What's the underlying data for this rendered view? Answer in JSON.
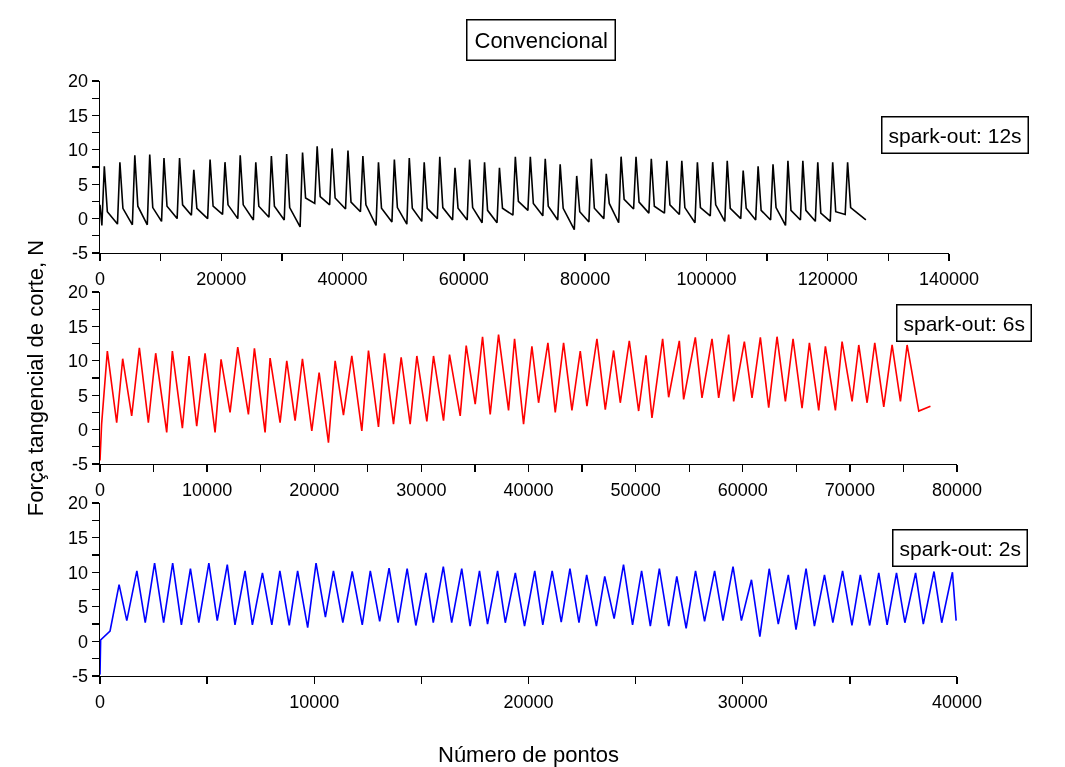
{
  "chart_data": [
    {
      "type": "line",
      "title": "Convencional",
      "annotations": [
        "spark-out: 12s"
      ],
      "line_style": "solid",
      "xlim": [
        0,
        140000
      ],
      "xticks": [
        0,
        {
          "value": 10000,
          "label": null
        },
        20000,
        {
          "value": 30000,
          "label": null
        },
        40000,
        {
          "value": 50000,
          "label": null
        },
        60000,
        {
          "value": 70000,
          "label": null
        },
        80000,
        {
          "value": 90000,
          "label": null
        },
        100000,
        {
          "value": 110000,
          "label": null
        },
        120000,
        {
          "value": 130000,
          "label": null
        },
        140000
      ],
      "ylim": [
        -5,
        20
      ],
      "yticks": [
        -5,
        {
          "value": -2.5,
          "label": null
        },
        0,
        {
          "value": 2.5,
          "label": null
        },
        5,
        {
          "value": 7.5,
          "label": null
        },
        10,
        {
          "value": 12.5,
          "label": null
        },
        15,
        {
          "value": 17.5,
          "label": null
        },
        20
      ],
      "x": [
        0,
        310,
        710,
        1210,
        2880,
        3280,
        3780,
        5340,
        5740,
        6240,
        7800,
        8200,
        8700,
        10150,
        10550,
        11050,
        12720,
        13120,
        13620,
        15070,
        15470,
        15970,
        17750,
        18150,
        18650,
        20210,
        20610,
        21110,
        22720,
        23120,
        23620,
        25290,
        25690,
        26190,
        27860,
        28260,
        28760,
        30380,
        30780,
        31280,
        33000,
        33400,
        33900,
        35410,
        35810,
        36310,
        37870,
        38270,
        38770,
        40490,
        40890,
        41390,
        42950,
        43350,
        43850,
        45520,
        45920,
        46420,
        48140,
        48540,
        49040,
        50600,
        51000,
        51500,
        53060,
        53460,
        53960,
        55630,
        56030,
        56530,
        58140,
        58540,
        59040,
        60550,
        60950,
        61450,
        63010,
        63410,
        63910,
        65470,
        65870,
        66370,
        68090,
        68490,
        68990,
        70560,
        70960,
        71460,
        73020,
        73420,
        73920,
        75480,
        75880,
        76380,
        78210,
        78610,
        79110,
        80620,
        81020,
        81520,
        83080,
        83480,
        83980,
        85530,
        85930,
        86430,
        87990,
        88390,
        88890,
        90510,
        90910,
        91410,
        93080,
        93480,
        93980,
        95540,
        95940,
        96440,
        98110,
        98510,
        99010,
        100630,
        101030,
        101530,
        103030,
        103430,
        103930,
        105660,
        106060,
        106560,
        108120,
        108520,
        109020,
        110580,
        110980,
        111480,
        113040,
        113440,
        113940,
        115500,
        115900,
        116400,
        117960,
        118360,
        118860,
        120420,
        120820,
        121320,
        122880,
        123280,
        123780,
        126290
      ],
      "series": [
        {
          "color": "#000000",
          "values": [
            2.0,
            -1.0,
            7.6,
            1.0,
            -0.8,
            8.2,
            1.5,
            -0.9,
            9.2,
            1.8,
            -0.9,
            9.3,
            1.6,
            -0.4,
            8.8,
            1.8,
            0.0,
            8.8,
            2.0,
            0.5,
            7.1,
            1.5,
            0.0,
            8.6,
            1.8,
            0.6,
            8.2,
            2.0,
            0.0,
            9.2,
            2.0,
            -0.2,
            8.2,
            1.8,
            0.2,
            9.1,
            1.8,
            -0.2,
            9.4,
            1.6,
            -1.2,
            9.6,
            3.0,
            2.2,
            10.5,
            3.2,
            2.0,
            10.2,
            3.0,
            1.4,
            9.9,
            2.4,
            1.0,
            9.1,
            2.0,
            -1.0,
            8.2,
            1.5,
            -0.5,
            8.6,
            1.6,
            -0.8,
            8.8,
            1.5,
            -0.4,
            8.2,
            1.5,
            0.0,
            9.0,
            1.6,
            -0.2,
            7.4,
            1.5,
            -0.2,
            8.6,
            1.6,
            -0.6,
            8.2,
            1.2,
            -0.6,
            7.4,
            1.5,
            0.5,
            9.0,
            2.5,
            1.2,
            9.0,
            2.2,
            0.4,
            8.7,
            1.8,
            -0.2,
            7.9,
            1.5,
            -1.6,
            6.2,
            1.0,
            -0.5,
            8.7,
            1.5,
            0.0,
            6.5,
            2.2,
            -0.6,
            9.0,
            2.8,
            1.4,
            9.0,
            2.4,
            0.8,
            8.7,
            1.8,
            0.8,
            8.4,
            2.0,
            0.6,
            8.4,
            1.6,
            -0.6,
            8.2,
            1.6,
            0.4,
            8.2,
            2.0,
            -0.4,
            8.4,
            1.5,
            0.0,
            7.0,
            1.5,
            -0.2,
            7.6,
            1.2,
            -0.2,
            7.9,
            1.6,
            -1.0,
            8.4,
            1.2,
            -0.2,
            8.4,
            1.2,
            -0.4,
            8.2,
            0.8,
            -0.4,
            8.2,
            1.0,
            0.6,
            8.2,
            1.6,
            -0.2
          ]
        }
      ]
    },
    {
      "type": "line",
      "ylabel": "Força tangencial de corte, N",
      "annotations": [
        "spark-out: 6s"
      ],
      "line_style": "solid",
      "xlim": [
        0,
        80000
      ],
      "xticks": [
        0,
        {
          "value": 5000,
          "label": null
        },
        10000,
        {
          "value": 15000,
          "label": null
        },
        20000,
        {
          "value": 25000,
          "label": null
        },
        30000,
        {
          "value": 35000,
          "label": null
        },
        40000,
        {
          "value": 45000,
          "label": null
        },
        50000,
        {
          "value": 55000,
          "label": null
        },
        60000,
        {
          "value": 65000,
          "label": null
        },
        70000,
        {
          "value": 75000,
          "label": null
        },
        80000
      ],
      "ylim": [
        -5,
        20
      ],
      "yticks": [
        -5,
        {
          "value": -2.5,
          "label": null
        },
        0,
        {
          "value": 2.5,
          "label": null
        },
        5,
        {
          "value": 7.5,
          "label": null
        },
        10,
        {
          "value": 12.5,
          "label": null
        },
        15,
        {
          "value": 17.5,
          "label": null
        },
        20
      ],
      "x": [
        0,
        150,
        685,
        1557,
        2117,
        2958,
        3674,
        4514,
        5199,
        6227,
        6756,
        7690,
        8313,
        9029,
        9807,
        10741,
        11301,
        12142,
        12858,
        13854,
        14415,
        15411,
        15878,
        16812,
        17435,
        18213,
        18898,
        19770,
        20455,
        21326,
        21949,
        22727,
        23506,
        24440,
        25062,
        25996,
        26557,
        27397,
        28113,
        28954,
        29577,
        30511,
        31133,
        32067,
        32628,
        33624,
        34184,
        35025,
        35710,
        36426,
        37204,
        38138,
        38699,
        39539,
        40318,
        40940,
        41812,
        42497,
        43275,
        44054,
        44832,
        45455,
        46389,
        47167,
        47945,
        48568,
        49409,
        50281,
        50965,
        51526,
        52522,
        53082,
        54079,
        54483,
        55573,
        56196,
        57130,
        57752,
        58686,
        59153,
        60150,
        60866,
        61644,
        62422,
        63201,
        63979,
        64695,
        65536,
        66221,
        67092,
        67715,
        68649,
        69272,
        70206,
        70829,
        71607,
        72323,
        73163,
        73942,
        74720,
        75343,
        76432,
        77522
      ],
      "series": [
        {
          "color": "#ff0000",
          "values": [
            -4.5,
            0.8,
            11.4,
            1.0,
            10.3,
            2.0,
            11.9,
            1.0,
            11.1,
            -0.4,
            11.4,
            0.2,
            10.7,
            0.5,
            11.1,
            -0.4,
            10.2,
            2.5,
            12.0,
            2.2,
            11.8,
            -0.4,
            10.4,
            1.0,
            10.0,
            1.3,
            10.3,
            -0.2,
            8.3,
            -1.9,
            10.0,
            2.1,
            10.7,
            -0.2,
            11.5,
            0.4,
            11.1,
            0.8,
            10.5,
            0.8,
            10.7,
            1.2,
            10.7,
            1.3,
            10.9,
            2.0,
            12.2,
            3.7,
            13.5,
            2.2,
            13.8,
            2.8,
            13.2,
            0.8,
            12.1,
            3.9,
            12.6,
            2.5,
            12.6,
            2.8,
            11.4,
            3.4,
            13.2,
            2.9,
            11.5,
            3.9,
            12.9,
            2.7,
            10.8,
            1.7,
            13.2,
            4.7,
            12.9,
            4.4,
            13.4,
            4.6,
            13.2,
            4.6,
            13.8,
            4.1,
            12.8,
            4.6,
            13.4,
            3.2,
            13.5,
            4.1,
            13.2,
            3.1,
            12.6,
            2.8,
            12.1,
            2.8,
            12.8,
            4.1,
            12.3,
            3.9,
            12.6,
            3.3,
            12.3,
            4.1,
            12.3,
            2.7,
            3.4
          ]
        }
      ]
    },
    {
      "type": "line",
      "xlabel": "Número de pontos",
      "annotations": [
        "spark-out: 2s"
      ],
      "line_style": "solid",
      "xlim": [
        0,
        40000
      ],
      "xticks": [
        0,
        {
          "value": 5000,
          "label": null
        },
        10000,
        {
          "value": 15000,
          "label": null
        },
        20000,
        {
          "value": 25000,
          "label": null
        },
        30000,
        {
          "value": 35000,
          "label": null
        },
        40000
      ],
      "ylim": [
        -5,
        20
      ],
      "yticks": [
        -5,
        {
          "value": -2.5,
          "label": null
        },
        0,
        {
          "value": 2.5,
          "label": null
        },
        5,
        {
          "value": 7.5,
          "label": null
        },
        10,
        {
          "value": 12.5,
          "label": null
        },
        15,
        {
          "value": 17.5,
          "label": null
        },
        20
      ],
      "x": [
        0,
        30,
        469,
        891,
        1251,
        1720,
        2111,
        2548,
        2970,
        3392,
        3799,
        4221,
        4612,
        5081,
        5472,
        5941,
        6300,
        6769,
        7113,
        7582,
        8020,
        8395,
        8833,
        9224,
        9693,
        10084,
        10521,
        10896,
        11334,
        11772,
        12241,
        12616,
        13054,
        13492,
        13914,
        14336,
        14742,
        15211,
        15555,
        16024,
        16415,
        16884,
        17275,
        17713,
        18088,
        18557,
        18916,
        19385,
        19815,
        20292,
        20667,
        21105,
        21527,
        21934,
        22356,
        22715,
        23169,
        23559,
        23997,
        24435,
        24857,
        25279,
        25686,
        26108,
        26545,
        26921,
        27358,
        27796,
        28218,
        28687,
        29078,
        29547,
        29938,
        30407,
        30798,
        31235,
        31658,
        32127,
        32486,
        32955,
        33346,
        33815,
        34206,
        34659,
        35097,
        35488,
        35925,
        36348,
        36738,
        37176,
        37567,
        38067,
        38427,
        38927,
        39287,
        39787,
        39960
      ],
      "series": [
        {
          "color": "#0000ff",
          "values": [
            -4.8,
            0.2,
            1.5,
            8.2,
            3.0,
            10.2,
            2.7,
            11.3,
            2.7,
            11.3,
            2.4,
            10.5,
            2.7,
            11.3,
            3.0,
            11.1,
            2.4,
            10.2,
            2.4,
            9.9,
            2.4,
            10.2,
            2.3,
            10.2,
            2.0,
            11.3,
            3.5,
            10.2,
            2.7,
            10.1,
            2.4,
            10.2,
            2.9,
            10.6,
            2.7,
            10.5,
            2.3,
            9.9,
            2.7,
            10.8,
            2.7,
            10.5,
            2.2,
            10.2,
            2.5,
            10.2,
            2.7,
            9.9,
            2.2,
            10.2,
            2.4,
            10.2,
            2.8,
            10.5,
            2.7,
            9.6,
            2.2,
            9.4,
            3.3,
            11.1,
            2.4,
            10.2,
            2.2,
            10.5,
            2.2,
            9.4,
            1.9,
            10.2,
            2.9,
            10.2,
            3.0,
            10.8,
            3.0,
            8.9,
            0.7,
            10.5,
            2.5,
            9.6,
            1.7,
            10.5,
            2.2,
            9.6,
            2.7,
            10.2,
            2.3,
            9.6,
            2.3,
            9.9,
            2.4,
            9.9,
            2.7,
            9.9,
            2.5,
            10.1,
            2.7,
            10.0,
            3.0
          ]
        }
      ]
    }
  ]
}
